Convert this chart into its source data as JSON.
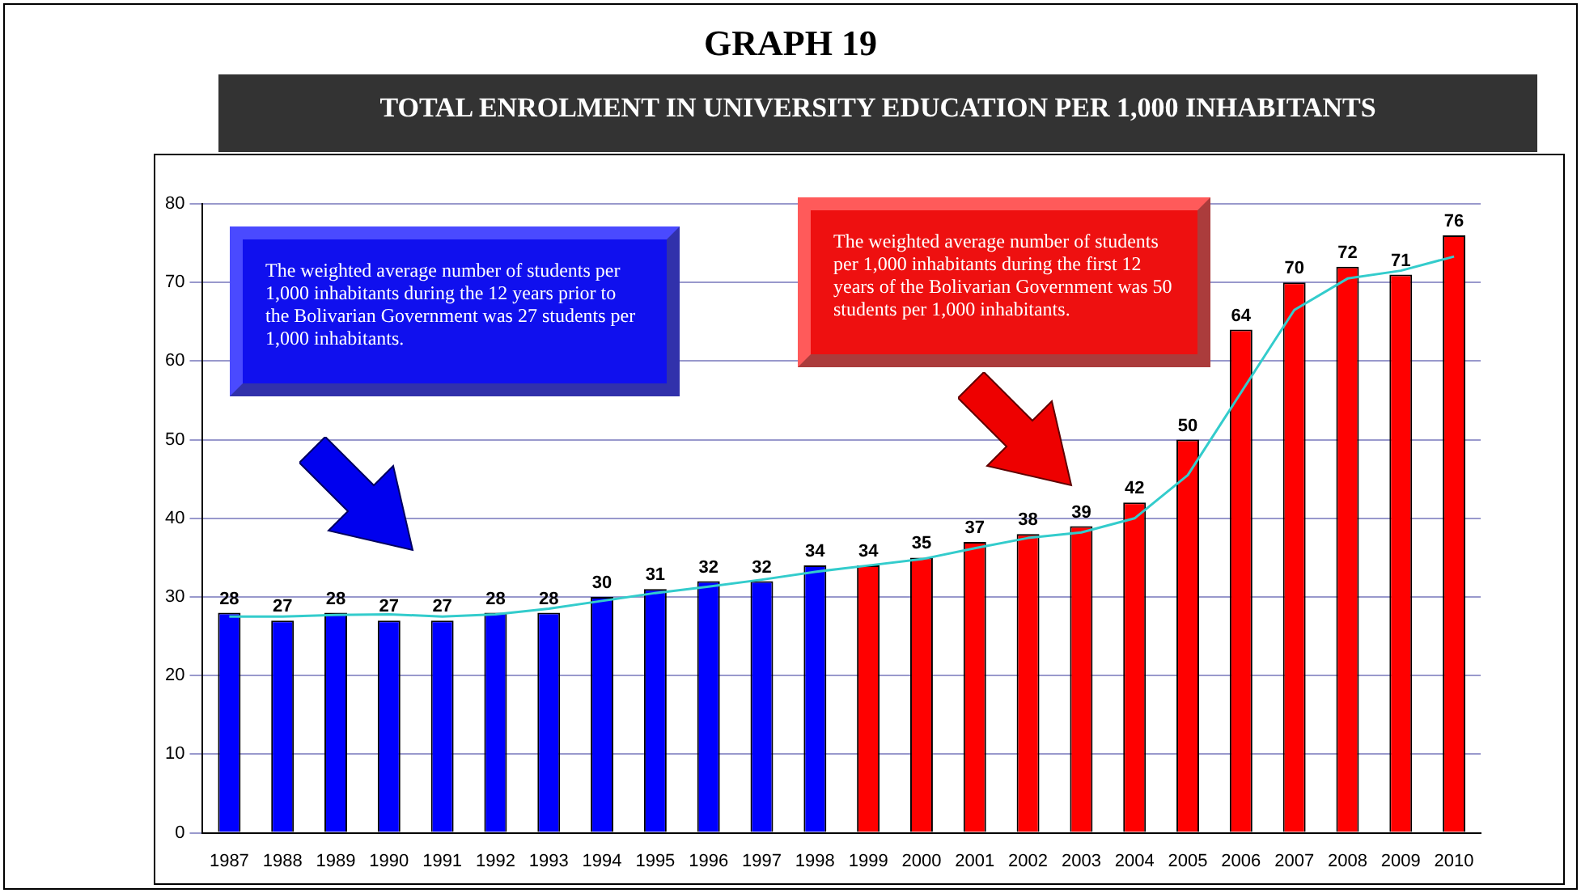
{
  "chart_data": {
    "type": "bar",
    "title": "GRAPH 19",
    "subtitle": "TOTAL ENROLMENT IN UNIVERSITY EDUCATION PER 1,000 INHABITANTS",
    "categories": [
      "1987",
      "1988",
      "1989",
      "1990",
      "1991",
      "1992",
      "1993",
      "1994",
      "1995",
      "1996",
      "1997",
      "1998",
      "1999",
      "2000",
      "2001",
      "2002",
      "2003",
      "2004",
      "2005",
      "2006",
      "2007",
      "2008",
      "2009",
      "2010"
    ],
    "series": [
      {
        "colors": [
          "#0000ff",
          "#0000ff",
          "#0000ff",
          "#0000ff",
          "#0000ff",
          "#0000ff",
          "#0000ff",
          "#0000ff",
          "#0000ff",
          "#0000ff",
          "#0000ff",
          "#0000ff",
          "#ff0000",
          "#ff0000",
          "#ff0000",
          "#ff0000",
          "#ff0000",
          "#ff0000",
          "#ff0000",
          "#ff0000",
          "#ff0000",
          "#ff0000",
          "#ff0000",
          "#ff0000"
        ],
        "values": [
          28,
          27,
          28,
          27,
          27,
          28,
          28,
          30,
          31,
          32,
          32,
          34,
          34,
          35,
          37,
          38,
          39,
          42,
          50,
          64,
          70,
          72,
          71,
          76
        ],
        "value_labels": [
          "28",
          "27",
          "28",
          "27",
          "27",
          "28",
          "28",
          "30",
          "31",
          "32",
          "32",
          "34",
          "34",
          "35",
          "37",
          "38",
          "39",
          "42",
          "50",
          "64",
          "70",
          "72",
          "71",
          "76"
        ]
      },
      {
        "type": "line",
        "color": "#33cccc",
        "values": [
          27.5,
          27.5,
          27.7,
          27.8,
          27.5,
          27.8,
          28.5,
          29.5,
          30.5,
          31.3,
          32.2,
          33.2,
          34,
          34.8,
          36.2,
          37.5,
          38.2,
          40,
          45.5,
          56,
          66.5,
          70.5,
          71.5,
          73.3
        ]
      }
    ],
    "ylim": [
      0,
      80
    ],
    "yticks": [
      0,
      10,
      20,
      30,
      40,
      50,
      60,
      70,
      80
    ],
    "grid": "y",
    "legend": false,
    "marker": "none",
    "annotations": [
      "The weighted average number of students per 1,000 inhabitants during the 12 years prior to the Bolivarian Government was 27 students per 1,000 inhabitants.",
      "The weighted average number of students per 1,000 inhabitants during the first 12 years of the Bolivarian Government was 50 students per 1,000 inhabitants."
    ]
  }
}
